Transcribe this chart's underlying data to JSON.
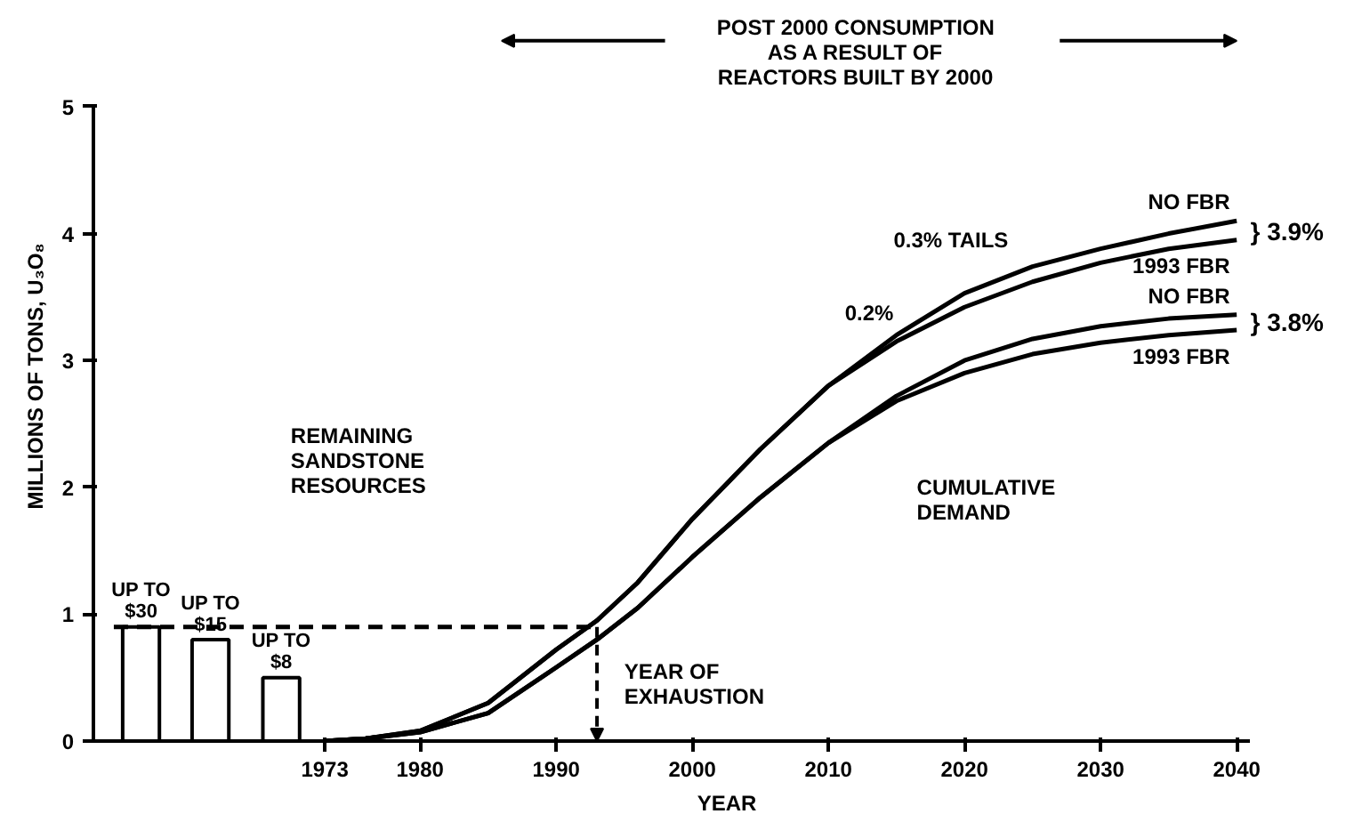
{
  "chart_data": {
    "type": "line",
    "xlabel": "YEAR",
    "ylabel": "MILLIONS OF TONS, U₃O₈",
    "xlim": [
      1956,
      2041
    ],
    "ylim": [
      0,
      5
    ],
    "xticks": [
      1973,
      1980,
      1990,
      2000,
      2010,
      2020,
      2030,
      2040
    ],
    "yticks": [
      0,
      1,
      2,
      3,
      4,
      5
    ],
    "grid": false,
    "marker": "none",
    "series": [
      {
        "type": "bar",
        "color": "#000000",
        "x": [
          1959.5,
          1964.6,
          1969.8
        ],
        "values": [
          0.9,
          0.8,
          0.5
        ]
      },
      {
        "type": "line",
        "color": "#000000",
        "line_style": "dashed",
        "x": [
          1957.5,
          1993
        ],
        "values": [
          0.9,
          0.9
        ]
      },
      {
        "name": "NO FBR",
        "color": "#000000",
        "x": [
          1973,
          1976,
          1980,
          1985,
          1990,
          1993,
          1996,
          2000,
          2005,
          2010,
          2015,
          2020,
          2025,
          2030,
          2035,
          2040
        ],
        "values": [
          0,
          0.02,
          0.08,
          0.3,
          0.72,
          0.95,
          1.25,
          1.75,
          2.3,
          2.8,
          3.2,
          3.53,
          3.74,
          3.88,
          4.0,
          4.1
        ]
      },
      {
        "name": "1993 FBR",
        "color": "#000000",
        "x": [
          1973,
          1976,
          1980,
          1985,
          1990,
          1993,
          1996,
          2000,
          2005,
          2010,
          2015,
          2020,
          2025,
          2030,
          2035,
          2040
        ],
        "values": [
          0,
          0.02,
          0.08,
          0.3,
          0.72,
          0.95,
          1.25,
          1.75,
          2.3,
          2.8,
          3.15,
          3.42,
          3.62,
          3.77,
          3.88,
          3.95
        ]
      },
      {
        "name": "NO FBR",
        "color": "#000000",
        "x": [
          1973,
          1976,
          1980,
          1985,
          1990,
          1993,
          1996,
          2000,
          2005,
          2010,
          2015,
          2020,
          2025,
          2030,
          2035,
          2040
        ],
        "values": [
          0,
          0.02,
          0.07,
          0.22,
          0.58,
          0.8,
          1.05,
          1.45,
          1.92,
          2.35,
          2.72,
          3.0,
          3.17,
          3.27,
          3.33,
          3.36
        ]
      },
      {
        "name": "1993 FBR",
        "color": "#000000",
        "x": [
          1973,
          1976,
          1980,
          1985,
          1990,
          1993,
          1996,
          2000,
          2005,
          2010,
          2015,
          2020,
          2025,
          2030,
          2035,
          2040
        ],
        "values": [
          0,
          0.02,
          0.07,
          0.22,
          0.58,
          0.8,
          1.05,
          1.45,
          1.92,
          2.35,
          2.68,
          2.9,
          3.05,
          3.14,
          3.2,
          3.24
        ]
      }
    ],
    "annotations": [
      {
        "text": "UP TO\n$30",
        "x": 1959.5,
        "y": 0.9
      },
      {
        "text": "UP TO\n$15",
        "x": 1964.6,
        "y": 0.8
      },
      {
        "text": "UP TO\n$8",
        "x": 1969.8,
        "y": 0.5
      },
      {
        "text": "YEAR OF\nEXHAUSTION",
        "x": 1993,
        "y": 0.9
      },
      "0.3% TAILS",
      "0.2%",
      "} 3.9%",
      "} 3.8%",
      "REMAINING\nSANDSTONE\nRESOURCES",
      "CUMULATIVE\nDEMAND",
      "POST 2000 CONSUMPTION\nAS A RESULT OF\nREACTORS BUILT BY 2000"
    ]
  }
}
